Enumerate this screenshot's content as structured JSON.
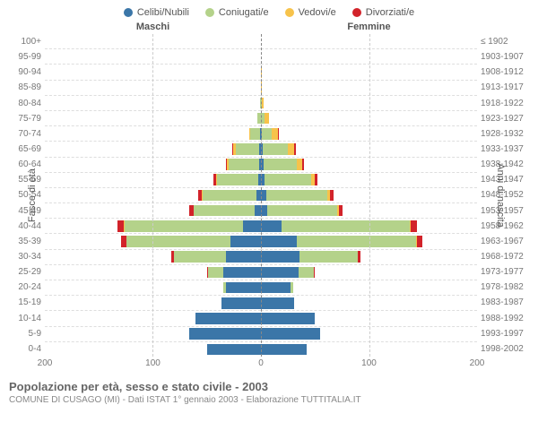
{
  "legend": [
    {
      "label": "Celibi/Nubili",
      "color": "#3b76a8"
    },
    {
      "label": "Coniugati/e",
      "color": "#b4d28a"
    },
    {
      "label": "Vedovi/e",
      "color": "#f7c34b"
    },
    {
      "label": "Divorziati/e",
      "color": "#d2232a"
    }
  ],
  "headers": {
    "male": "Maschi",
    "female": "Femmine"
  },
  "yaxis": {
    "left_title": "Fasce di età",
    "right_title": "Anni di nascita",
    "ages": [
      "100+",
      "95-99",
      "90-94",
      "85-89",
      "80-84",
      "75-79",
      "70-74",
      "65-69",
      "60-64",
      "55-59",
      "50-54",
      "45-49",
      "40-44",
      "35-39",
      "30-34",
      "25-29",
      "20-24",
      "15-19",
      "10-14",
      "5-9",
      "0-4"
    ],
    "years": [
      "≤ 1902",
      "1903-1907",
      "1908-1912",
      "1913-1917",
      "1918-1922",
      "1923-1927",
      "1928-1932",
      "1933-1937",
      "1938-1942",
      "1943-1947",
      "1948-1952",
      "1953-1957",
      "1958-1962",
      "1963-1967",
      "1968-1972",
      "1973-1977",
      "1978-1982",
      "1983-1987",
      "1988-1992",
      "1993-1997",
      "1998-2002"
    ]
  },
  "xaxis": {
    "max": 200,
    "ticks": [
      200,
      100,
      0,
      100,
      200
    ]
  },
  "colors": {
    "celibi": "#3b76a8",
    "coniugati": "#b4d28a",
    "vedovi": "#f7c34b",
    "divorziati": "#d2232a",
    "grid": "#cccccc"
  },
  "data": {
    "male": [
      {
        "c": 0,
        "m": 0,
        "v": 0,
        "d": 0
      },
      {
        "c": 0,
        "m": 0,
        "v": 0,
        "d": 0
      },
      {
        "c": 0,
        "m": 2,
        "v": 2,
        "d": 0
      },
      {
        "c": 0,
        "m": 3,
        "v": 3,
        "d": 0
      },
      {
        "c": 1,
        "m": 10,
        "v": 4,
        "d": 0
      },
      {
        "c": 2,
        "m": 20,
        "v": 5,
        "d": 0
      },
      {
        "c": 3,
        "m": 38,
        "v": 6,
        "d": 0
      },
      {
        "c": 4,
        "m": 60,
        "v": 6,
        "d": 3
      },
      {
        "c": 5,
        "m": 68,
        "v": 4,
        "d": 4
      },
      {
        "c": 6,
        "m": 80,
        "v": 3,
        "d": 5
      },
      {
        "c": 8,
        "m": 92,
        "v": 2,
        "d": 6
      },
      {
        "c": 10,
        "m": 98,
        "v": 1,
        "d": 6
      },
      {
        "c": 20,
        "m": 135,
        "v": 1,
        "d": 7
      },
      {
        "c": 35,
        "m": 120,
        "v": 0,
        "d": 6
      },
      {
        "c": 50,
        "m": 75,
        "v": 0,
        "d": 4
      },
      {
        "c": 70,
        "m": 28,
        "v": 0,
        "d": 2
      },
      {
        "c": 78,
        "m": 6,
        "v": 0,
        "d": 0
      },
      {
        "c": 85,
        "m": 0,
        "v": 0,
        "d": 0
      },
      {
        "c": 110,
        "m": 0,
        "v": 0,
        "d": 0
      },
      {
        "c": 115,
        "m": 0,
        "v": 0,
        "d": 0
      },
      {
        "c": 100,
        "m": 0,
        "v": 0,
        "d": 0
      }
    ],
    "female": [
      {
        "c": 0,
        "m": 0,
        "v": 1,
        "d": 0
      },
      {
        "c": 0,
        "m": 0,
        "v": 1,
        "d": 0
      },
      {
        "c": 0,
        "m": 1,
        "v": 6,
        "d": 0
      },
      {
        "c": 0,
        "m": 2,
        "v": 10,
        "d": 0
      },
      {
        "c": 1,
        "m": 6,
        "v": 16,
        "d": 0
      },
      {
        "c": 2,
        "m": 15,
        "v": 22,
        "d": 0
      },
      {
        "c": 3,
        "m": 32,
        "v": 20,
        "d": 2
      },
      {
        "c": 4,
        "m": 58,
        "v": 15,
        "d": 3
      },
      {
        "c": 5,
        "m": 70,
        "v": 10,
        "d": 4
      },
      {
        "c": 6,
        "m": 85,
        "v": 6,
        "d": 5
      },
      {
        "c": 8,
        "m": 98,
        "v": 4,
        "d": 6
      },
      {
        "c": 10,
        "m": 105,
        "v": 2,
        "d": 6
      },
      {
        "c": 22,
        "m": 140,
        "v": 1,
        "d": 7
      },
      {
        "c": 38,
        "m": 128,
        "v": 1,
        "d": 6
      },
      {
        "c": 52,
        "m": 80,
        "v": 0,
        "d": 4
      },
      {
        "c": 70,
        "m": 28,
        "v": 0,
        "d": 2
      },
      {
        "c": 72,
        "m": 5,
        "v": 0,
        "d": 0
      },
      {
        "c": 78,
        "m": 0,
        "v": 0,
        "d": 0
      },
      {
        "c": 100,
        "m": 0,
        "v": 0,
        "d": 0
      },
      {
        "c": 105,
        "m": 0,
        "v": 0,
        "d": 0
      },
      {
        "c": 92,
        "m": 0,
        "v": 0,
        "d": 0
      }
    ]
  },
  "footer": {
    "title": "Popolazione per età, sesso e stato civile - 2003",
    "sub": "COMUNE DI CUSAGO (MI) - Dati ISTAT 1° gennaio 2003 - Elaborazione TUTTITALIA.IT"
  }
}
